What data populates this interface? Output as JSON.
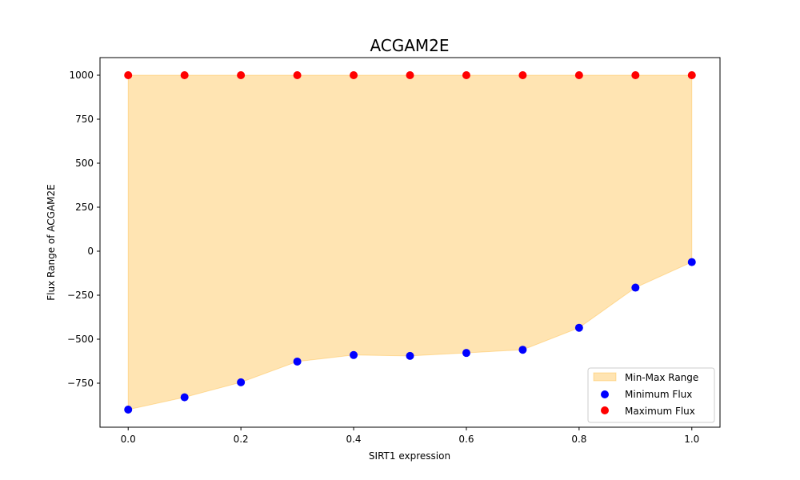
{
  "chart_data": {
    "type": "scatter",
    "title": "ACGAM2E",
    "xlabel": "SIRT1 expression",
    "ylabel": "Flux Range of ACGAM2E",
    "xlim": [
      -0.05,
      1.05
    ],
    "ylim": [
      -1000,
      1100
    ],
    "x_ticks": [
      0.0,
      0.2,
      0.4,
      0.6,
      0.8,
      1.0
    ],
    "x_tick_labels": [
      "0.0",
      "0.2",
      "0.4",
      "0.6",
      "0.8",
      "1.0"
    ],
    "y_ticks": [
      -750,
      -500,
      -250,
      0,
      250,
      500,
      750,
      1000
    ],
    "y_tick_labels": [
      "−750",
      "−500",
      "−250",
      "0",
      "250",
      "500",
      "750",
      "1000"
    ],
    "x": [
      0.0,
      0.1,
      0.2,
      0.3,
      0.4,
      0.5,
      0.6,
      0.7,
      0.8,
      0.9,
      1.0
    ],
    "series": [
      {
        "name": "Minimum Flux",
        "color": "#0000ff",
        "values": [
          -900,
          -830,
          -745,
          -627,
          -590,
          -595,
          -578,
          -560,
          -435,
          -207,
          -62
        ]
      },
      {
        "name": "Maximum Flux",
        "color": "#ff0000",
        "values": [
          1000,
          1000,
          1000,
          1000,
          1000,
          1000,
          1000,
          1000,
          1000,
          1000,
          1000
        ]
      }
    ],
    "fill": {
      "name": "Min-Max Range",
      "color": "#ffa500",
      "opacity": 0.3
    },
    "legend": {
      "placement": "lower-right",
      "items": [
        "Min-Max Range",
        "Minimum Flux",
        "Maximum Flux"
      ]
    },
    "grid": false
  }
}
